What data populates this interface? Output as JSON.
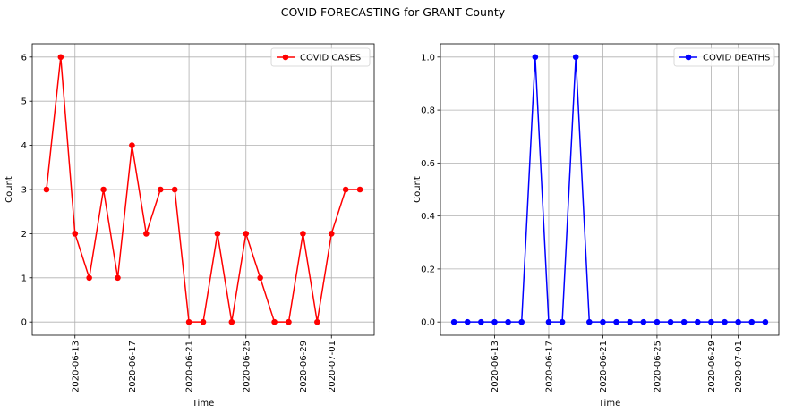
{
  "figure_title": "COVID FORECASTING for GRANT County",
  "chart_data": [
    {
      "type": "line",
      "title": "",
      "xlabel": "Time",
      "ylabel": "Count",
      "x": [
        "2020-06-11",
        "2020-06-12",
        "2020-06-13",
        "2020-06-14",
        "2020-06-15",
        "2020-06-16",
        "2020-06-17",
        "2020-06-18",
        "2020-06-19",
        "2020-06-20",
        "2020-06-21",
        "2020-06-22",
        "2020-06-23",
        "2020-06-24",
        "2020-06-25",
        "2020-06-26",
        "2020-06-27",
        "2020-06-28",
        "2020-06-29",
        "2020-06-30",
        "2020-07-01",
        "2020-07-02",
        "2020-07-03"
      ],
      "series": [
        {
          "name": "COVID CASES",
          "color": "#ff0000",
          "marker": "circle",
          "values": [
            3,
            6,
            2,
            1,
            3,
            1,
            4,
            2,
            3,
            3,
            0,
            0,
            2,
            0,
            2,
            1,
            0,
            0,
            2,
            0,
            2,
            3,
            3
          ]
        }
      ],
      "x_ticks": [
        "2020-06-13",
        "2020-06-17",
        "2020-06-21",
        "2020-06-25",
        "2020-06-29",
        "2020-07-01"
      ],
      "y_ticks": [
        0,
        1,
        2,
        3,
        4,
        5,
        6
      ],
      "y_tick_labels": [
        "0",
        "1",
        "2",
        "3",
        "4",
        "5",
        "6"
      ],
      "xlim": [
        "2020-06-10",
        "2020-07-04"
      ],
      "ylim": [
        -0.3,
        6.3
      ],
      "grid": true,
      "legend": "upper right"
    },
    {
      "type": "line",
      "title": "",
      "xlabel": "Time",
      "ylabel": "Count",
      "x": [
        "2020-06-10",
        "2020-06-11",
        "2020-06-12",
        "2020-06-13",
        "2020-06-14",
        "2020-06-15",
        "2020-06-16",
        "2020-06-17",
        "2020-06-18",
        "2020-06-19",
        "2020-06-20",
        "2020-06-21",
        "2020-06-22",
        "2020-06-23",
        "2020-06-24",
        "2020-06-25",
        "2020-06-26",
        "2020-06-27",
        "2020-06-28",
        "2020-06-29",
        "2020-06-30",
        "2020-07-01",
        "2020-07-02",
        "2020-07-03"
      ],
      "series": [
        {
          "name": "COVID DEATHS",
          "color": "#0000ff",
          "marker": "circle",
          "values": [
            0,
            0,
            0,
            0,
            0,
            0,
            1,
            0,
            0,
            1,
            0,
            0,
            0,
            0,
            0,
            0,
            0,
            0,
            0,
            0,
            0,
            0,
            0,
            0
          ]
        }
      ],
      "x_ticks": [
        "2020-06-13",
        "2020-06-17",
        "2020-06-21",
        "2020-06-25",
        "2020-06-29",
        "2020-07-01"
      ],
      "y_ticks": [
        0,
        0.2,
        0.4,
        0.6,
        0.8,
        1.0
      ],
      "y_tick_labels": [
        "0.0",
        "0.2",
        "0.4",
        "0.6",
        "0.8",
        "1.0"
      ],
      "xlim": [
        "2020-06-09",
        "2020-07-04"
      ],
      "ylim": [
        -0.05,
        1.05
      ],
      "grid": true,
      "legend": "upper right"
    }
  ]
}
